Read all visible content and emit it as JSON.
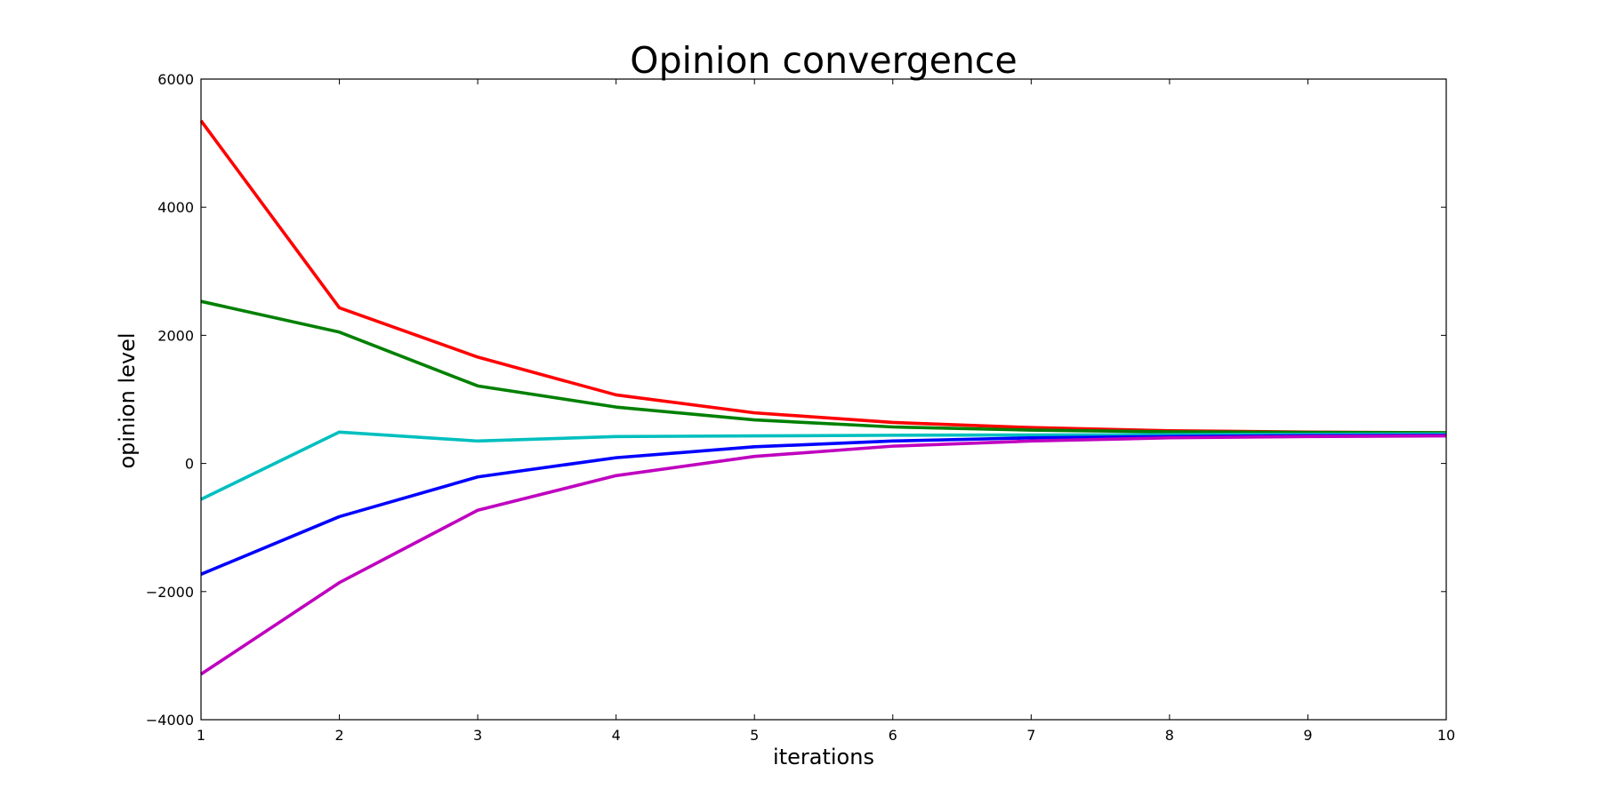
{
  "chart_data": {
    "type": "line",
    "title": "Opinion convergence",
    "xlabel": "iterations",
    "ylabel": "opinion level",
    "xlim": [
      1,
      10
    ],
    "ylim": [
      -4000,
      6000
    ],
    "x": [
      1,
      2,
      3,
      4,
      5,
      6,
      7,
      8,
      9,
      10
    ],
    "xticks": [
      "1",
      "2",
      "3",
      "4",
      "5",
      "6",
      "7",
      "8",
      "9",
      "10"
    ],
    "yticks": [
      {
        "value": -4000,
        "label": "−4000"
      },
      {
        "value": -2000,
        "label": "−2000"
      },
      {
        "value": 0,
        "label": "0"
      },
      {
        "value": 2000,
        "label": "2000"
      },
      {
        "value": 4000,
        "label": "4000"
      },
      {
        "value": 6000,
        "label": "6000"
      }
    ],
    "grid": false,
    "series": [
      {
        "color": "#ff0000",
        "values": [
          5350,
          2430,
          1660,
          1070,
          790,
          640,
          560,
          510,
          490,
          480
        ]
      },
      {
        "color": "#008000",
        "values": [
          2530,
          2050,
          1210,
          880,
          680,
          570,
          520,
          495,
          485,
          480
        ]
      },
      {
        "color": "#00bfbf",
        "values": [
          -560,
          490,
          350,
          420,
          430,
          440,
          445,
          450,
          455,
          460
        ]
      },
      {
        "color": "#0000ff",
        "values": [
          -1730,
          -830,
          -210,
          90,
          260,
          350,
          400,
          420,
          435,
          440
        ]
      },
      {
        "color": "#bf00bf",
        "values": [
          -3290,
          -1860,
          -730,
          -190,
          110,
          270,
          350,
          400,
          420,
          430
        ]
      }
    ]
  }
}
